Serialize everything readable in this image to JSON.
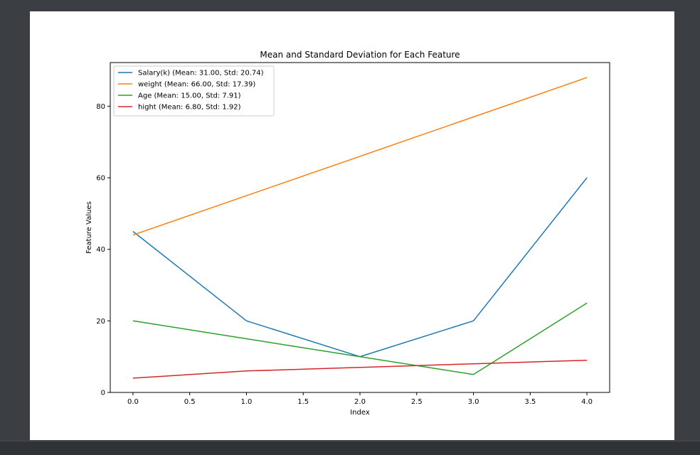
{
  "chart_data": {
    "type": "line",
    "title": "Mean and Standard Deviation for Each Feature",
    "xlabel": "Index",
    "ylabel": "Feature Values",
    "x": [
      0,
      1,
      2,
      3,
      4
    ],
    "xlim": [
      -0.2,
      4.2
    ],
    "ylim": [
      0,
      92.2
    ],
    "xticks": [
      0.0,
      0.5,
      1.0,
      1.5,
      2.0,
      2.5,
      3.0,
      3.5,
      4.0
    ],
    "xtick_labels": [
      "0.0",
      "0.5",
      "1.0",
      "1.5",
      "2.0",
      "2.5",
      "3.0",
      "3.5",
      "4.0"
    ],
    "yticks": [
      0,
      20,
      40,
      60,
      80
    ],
    "ytick_labels": [
      "0",
      "20",
      "40",
      "60",
      "80"
    ],
    "grid": false,
    "legend_position": "top-left",
    "series": [
      {
        "name": "Salary(k) (Mean: 31.00, Std: 20.74)",
        "color": "#1f77b4",
        "values": [
          45,
          20,
          10,
          20,
          60
        ]
      },
      {
        "name": "weight (Mean: 66.00, Std: 17.39)",
        "color": "#ff7f0e",
        "values": [
          44,
          55,
          66,
          77,
          88
        ]
      },
      {
        "name": "Age (Mean: 15.00, Std: 7.91)",
        "color": "#2ca02c",
        "values": [
          20,
          15,
          10,
          5,
          25
        ]
      },
      {
        "name": "hight (Mean: 6.80, Std: 1.92)",
        "color": "#d62728",
        "values": [
          4,
          6,
          7,
          8,
          9
        ]
      }
    ]
  }
}
